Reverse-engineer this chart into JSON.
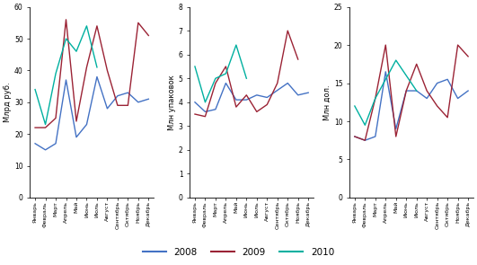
{
  "months": [
    "Январь",
    "Февраль",
    "Март",
    "Апрель",
    "Май",
    "Июнь",
    "Июль",
    "Август",
    "Сентябрь",
    "Октябрь",
    "Ноябрь",
    "Декабрь"
  ],
  "chart1": {
    "ylabel": "Млрд руб.",
    "ylim": [
      0,
      60
    ],
    "yticks": [
      0,
      10,
      20,
      30,
      40,
      50,
      60
    ],
    "data_2008": [
      17,
      15,
      17,
      37,
      19,
      23,
      38,
      28,
      32,
      33,
      30,
      31
    ],
    "data_2009": [
      22,
      22,
      25,
      56,
      24,
      41,
      54,
      40,
      29,
      29,
      55,
      51
    ],
    "data_2010": [
      34,
      23,
      39,
      50,
      46,
      54,
      41,
      null,
      null,
      null,
      null,
      null
    ]
  },
  "chart2": {
    "ylabel": "Млн упаковок",
    "ylim": [
      0,
      8
    ],
    "yticks": [
      0,
      1,
      2,
      3,
      4,
      5,
      6,
      7,
      8
    ],
    "data_2008": [
      4.0,
      3.6,
      3.7,
      4.8,
      4.1,
      4.1,
      4.3,
      4.2,
      4.5,
      4.8,
      4.3,
      4.4
    ],
    "data_2009": [
      3.5,
      3.4,
      4.8,
      5.5,
      3.8,
      4.3,
      3.6,
      3.9,
      4.8,
      7.0,
      5.8,
      null
    ],
    "data_2010": [
      5.5,
      4.0,
      5.0,
      5.2,
      6.4,
      5.0,
      null,
      null,
      null,
      null,
      null,
      null
    ]
  },
  "chart3": {
    "ylabel": "Млн дол.",
    "ylim": [
      0,
      25
    ],
    "yticks": [
      0,
      5,
      10,
      15,
      20,
      25
    ],
    "data_2008": [
      8.0,
      7.5,
      8.0,
      16.5,
      9.0,
      14,
      14,
      13,
      15,
      15.5,
      13,
      14
    ],
    "data_2009": [
      8.0,
      7.5,
      13,
      20,
      8.0,
      14,
      17.5,
      14,
      12,
      10.5,
      20,
      18.5
    ],
    "data_2010": [
      12,
      9.5,
      13,
      15.5,
      18,
      16,
      14,
      null,
      null,
      null,
      null,
      null
    ]
  },
  "colors": {
    "2008": "#4472c4",
    "2009": "#9b2335",
    "2010": "#00b0a0"
  },
  "legend_labels": [
    "2008",
    "2009",
    "2010"
  ],
  "background_color": "#ffffff"
}
